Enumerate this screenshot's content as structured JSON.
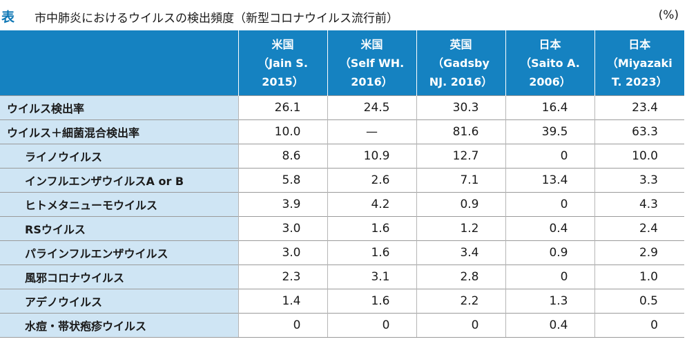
{
  "caption": {
    "tag": "表",
    "title": "市中肺炎におけるウイルスの検出頻度（新型コロナウイルス流行前）",
    "unit": "(%)"
  },
  "headers": [
    {
      "country": "米国",
      "line1": "（Jain S.",
      "line2": "2015）"
    },
    {
      "country": "米国",
      "line1": "（Self WH.",
      "line2": "2016）"
    },
    {
      "country": "英国",
      "line1": "（Gadsby",
      "line2": "NJ. 2016）"
    },
    {
      "country": "日本",
      "line1": "（Saito A.",
      "line2": "2006）"
    },
    {
      "country": "日本",
      "line1": "（Miyazaki",
      "line2": "T. 2023）"
    }
  ],
  "rows": [
    {
      "label": "ウイルス検出率",
      "values": [
        "26.1",
        "24.5",
        "30.3",
        "16.4",
        "23.4"
      ]
    },
    {
      "label": "ウイルス＋細菌混合検出率",
      "values": [
        "10.0",
        "—",
        "81.6",
        "39.5",
        "63.3"
      ]
    },
    {
      "label": "ライノウイルス",
      "values": [
        "8.6",
        "10.9",
        "12.7",
        "0",
        "10.0"
      ]
    },
    {
      "label": "インフルエンザウイルスA or B",
      "values": [
        "5.8",
        "2.6",
        "7.1",
        "13.4",
        "3.3"
      ]
    },
    {
      "label": "ヒトメタニューモウイルス",
      "values": [
        "3.9",
        "4.2",
        "0.9",
        "0",
        "4.3"
      ]
    },
    {
      "label": "RSウイルス",
      "values": [
        "3.0",
        "1.6",
        "1.2",
        "0.4",
        "2.4"
      ]
    },
    {
      "label": "パラインフルエンザウイルス",
      "values": [
        "3.0",
        "1.6",
        "3.4",
        "0.9",
        "2.9"
      ]
    },
    {
      "label": "風邪コロナウイルス",
      "values": [
        "2.3",
        "3.1",
        "2.8",
        "0",
        "1.0"
      ]
    },
    {
      "label": "アデノウイルス",
      "values": [
        "1.4",
        "1.6",
        "2.2",
        "1.3",
        "0.5"
      ]
    },
    {
      "label": "水痘・帯状疱疹ウイルス",
      "values": [
        "0",
        "0",
        "0",
        "0.4",
        "0"
      ]
    }
  ],
  "colors": {
    "header_bg": "#1582c1",
    "label_bg": "#cfe5f4",
    "tag": "#0e77b5"
  }
}
